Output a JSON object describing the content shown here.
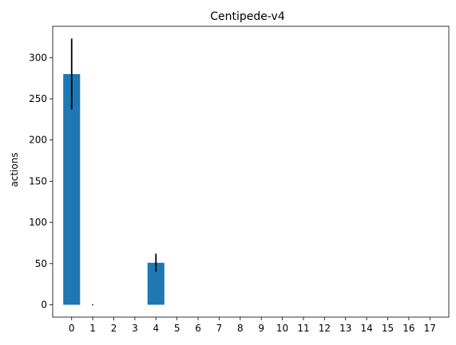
{
  "chart_data": {
    "type": "bar",
    "title": "Centipede-v4",
    "xlabel": "",
    "ylabel": "actions",
    "categories": [
      "0",
      "1",
      "2",
      "3",
      "4",
      "5",
      "6",
      "7",
      "8",
      "9",
      "10",
      "11",
      "12",
      "13",
      "14",
      "15",
      "16",
      "17"
    ],
    "values": [
      280,
      0,
      0,
      0,
      51,
      0,
      0,
      0,
      0,
      0,
      0,
      0,
      0,
      0,
      0,
      0,
      0,
      0
    ],
    "errors": [
      43,
      0.5,
      0,
      0,
      11,
      0,
      0,
      0,
      0,
      0,
      0,
      0,
      0,
      0,
      0,
      0,
      0,
      0
    ],
    "ylim": [
      -15,
      338
    ],
    "yticks": [
      0,
      50,
      100,
      150,
      200,
      250,
      300
    ],
    "grid": false,
    "colors": {
      "bar": "#1f77b4",
      "error": "#000000",
      "axis": "#000000"
    }
  }
}
